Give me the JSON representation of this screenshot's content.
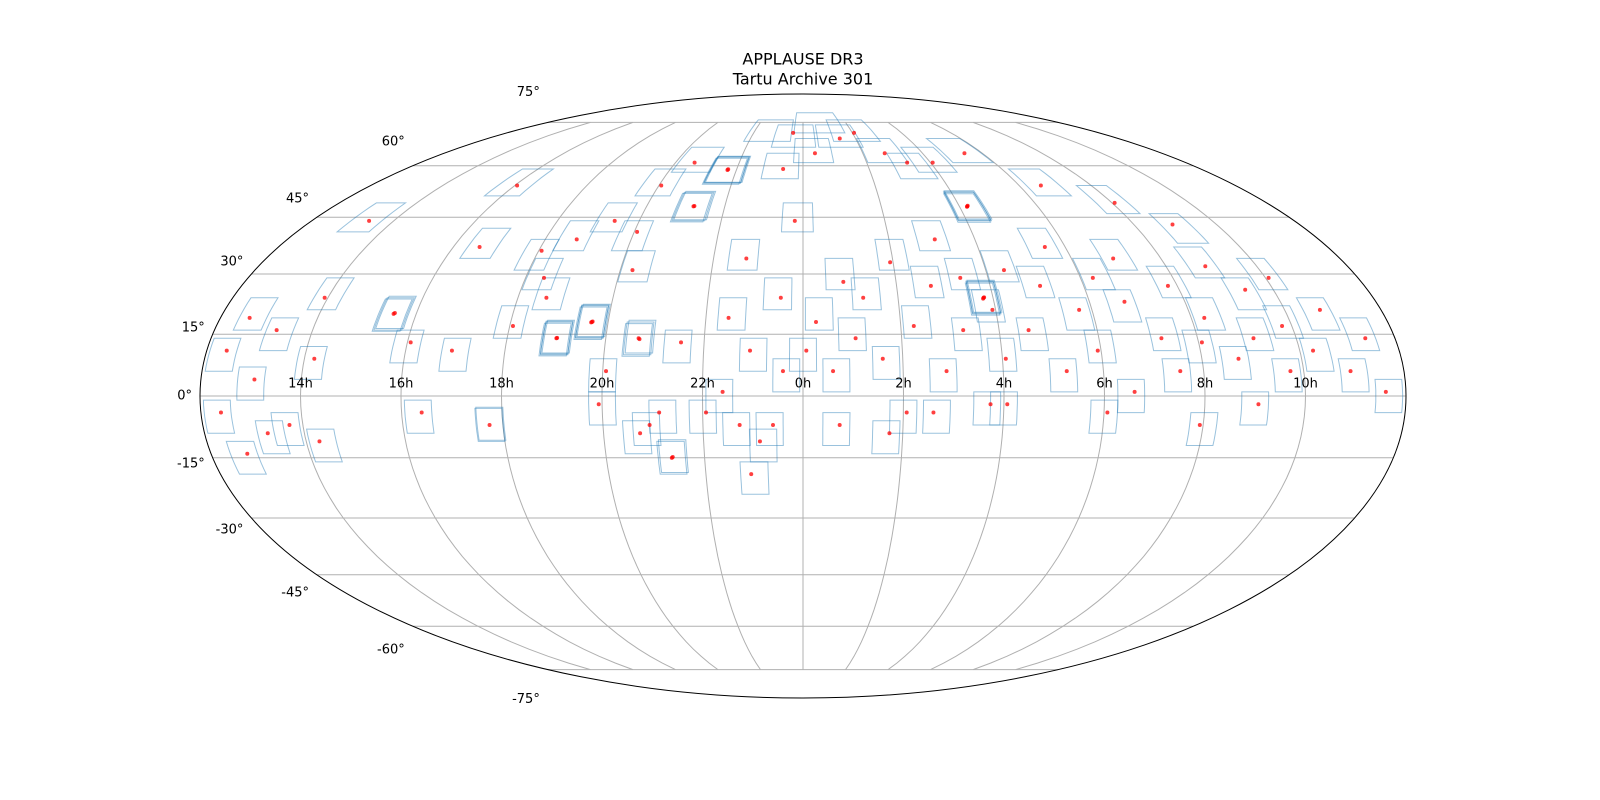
{
  "chart_data": {
    "type": "mollweide",
    "title": "APPLAUSE DR3",
    "subtitle": "Tartu Archive 301",
    "grid": true,
    "plate_color": "#1f77b4",
    "point_color": "#ff0000",
    "xticks": [
      {
        "value": 14,
        "label": "14h"
      },
      {
        "value": 16,
        "label": "16h"
      },
      {
        "value": 18,
        "label": "18h"
      },
      {
        "value": 20,
        "label": "20h"
      },
      {
        "value": 22,
        "label": "22h"
      },
      {
        "value": 0,
        "label": "0h"
      },
      {
        "value": 2,
        "label": "2h"
      },
      {
        "value": 4,
        "label": "4h"
      },
      {
        "value": 6,
        "label": "6h"
      },
      {
        "value": 8,
        "label": "8h"
      },
      {
        "value": 10,
        "label": "10h"
      }
    ],
    "yticks": [
      {
        "value": -75,
        "label": "-75°"
      },
      {
        "value": -60,
        "label": "-60°"
      },
      {
        "value": -45,
        "label": "-45°"
      },
      {
        "value": -30,
        "label": "-30°"
      },
      {
        "value": -15,
        "label": "-15°"
      },
      {
        "value": 0,
        "label": "0°"
      },
      {
        "value": 15,
        "label": "15°"
      },
      {
        "value": 30,
        "label": "30°"
      },
      {
        "value": 45,
        "label": "45°"
      },
      {
        "value": 60,
        "label": "60°"
      },
      {
        "value": 75,
        "label": "75°"
      }
    ],
    "plates": [
      [
        0,
        10
      ],
      [
        5,
        20
      ],
      [
        10,
        5
      ],
      [
        12,
        30
      ],
      [
        15,
        15
      ],
      [
        20,
        25
      ],
      [
        25,
        8
      ],
      [
        30,
        35
      ],
      [
        30,
        -5
      ],
      [
        35,
        18
      ],
      [
        40,
        28
      ],
      [
        42,
        5
      ],
      [
        45,
        40
      ],
      [
        50,
        15
      ],
      [
        52,
        30
      ],
      [
        55,
        -3
      ],
      [
        58,
        22
      ],
      [
        60,
        10
      ],
      [
        63,
        48
      ],
      [
        63.5,
        48.5
      ],
      [
        62.5,
        47.6
      ],
      [
        63,
        48.2
      ],
      [
        57,
        24
      ],
      [
        57.4,
        24.4
      ],
      [
        56.6,
        23.7
      ],
      [
        57,
        24.2
      ],
      [
        65,
        32
      ],
      [
        70,
        15
      ],
      [
        75,
        28
      ],
      [
        78,
        5
      ],
      [
        82,
        38
      ],
      [
        85,
        20
      ],
      [
        90,
        12
      ],
      [
        95,
        30
      ],
      [
        98,
        0
      ],
      [
        100,
        22
      ],
      [
        105,
        35
      ],
      [
        110,
        15
      ],
      [
        112,
        5
      ],
      [
        118,
        28
      ],
      [
        120,
        12
      ],
      [
        125,
        20
      ],
      [
        130,
        8
      ],
      [
        132,
        33
      ],
      [
        138,
        15
      ],
      [
        140,
        25
      ],
      [
        145,
        5
      ],
      [
        148,
        18
      ],
      [
        150,
        30
      ],
      [
        155,
        10
      ],
      [
        160,
        20
      ],
      [
        165,
        5
      ],
      [
        170,
        15
      ],
      [
        175,
        0
      ],
      [
        185,
        10
      ],
      [
        190,
        20
      ],
      [
        195,
        3
      ],
      [
        200,
        15
      ],
      [
        205,
        -8
      ],
      [
        210,
        25
      ],
      [
        212,
        8
      ],
      [
        215,
        -12
      ],
      [
        233,
        20
      ],
      [
        233.4,
        20.4
      ],
      [
        232.6,
        19.7
      ],
      [
        240,
        12
      ],
      [
        245,
        -5
      ],
      [
        255,
        10
      ],
      [
        266,
        -7
      ],
      [
        266.3,
        -6.7
      ],
      [
        270,
        18
      ],
      [
        275,
        30
      ],
      [
        280,
        25
      ],
      [
        285,
        14
      ],
      [
        285.4,
        14.4
      ],
      [
        284.6,
        13.7
      ],
      [
        285,
        14.2
      ],
      [
        295,
        18
      ],
      [
        295.4,
        18.4
      ],
      [
        294.6,
        17.7
      ],
      [
        295,
        18.2
      ],
      [
        300,
        5
      ],
      [
        305,
        32
      ],
      [
        310,
        14
      ],
      [
        310.5,
        14.4
      ],
      [
        309.6,
        13.6
      ],
      [
        313,
        -8
      ],
      [
        318,
        -5
      ],
      [
        322,
        12
      ],
      [
        326,
        58.7
      ],
      [
        326.5,
        59
      ],
      [
        325.5,
        58.4
      ],
      [
        326,
        58.9
      ],
      [
        318,
        48
      ],
      [
        318.5,
        48.3
      ],
      [
        317.5,
        47.7
      ],
      [
        330,
        -5
      ],
      [
        335,
        0
      ],
      [
        338,
        20
      ],
      [
        340,
        35
      ],
      [
        345,
        10
      ],
      [
        350,
        -8
      ],
      [
        352,
        25
      ],
      [
        355,
        5
      ],
      [
        358,
        45
      ],
      [
        290,
        45
      ],
      [
        300,
        55
      ],
      [
        310,
        62
      ],
      [
        280,
        40
      ],
      [
        270,
        35
      ],
      [
        300,
        40
      ],
      [
        20,
        70
      ],
      [
        30,
        72
      ],
      [
        40,
        65
      ],
      [
        50,
        60
      ],
      [
        60,
        62
      ],
      [
        80,
        65
      ],
      [
        100,
        55
      ],
      [
        120,
        50
      ],
      [
        135,
        42
      ],
      [
        240,
        55
      ],
      [
        200,
        45
      ],
      [
        250,
        38
      ],
      [
        350,
        60
      ],
      [
        355,
        70
      ],
      [
        5,
        65
      ],
      [
        10,
        75
      ],
      [
        340,
        72
      ],
      [
        310,
        -10
      ],
      [
        300,
        -3
      ],
      [
        320,
        -15
      ],
      [
        320.5,
        -14.6
      ],
      [
        340,
        -8
      ],
      [
        348,
        -12
      ],
      [
        345,
        -20
      ],
      [
        10,
        -8
      ],
      [
        25,
        -10
      ],
      [
        40,
        -5
      ],
      [
        60,
        -3
      ],
      [
        90,
        -5
      ],
      [
        120,
        -8
      ],
      [
        135,
        -3
      ],
      [
        185,
        -5
      ],
      [
        190,
        -15
      ],
      [
        200,
        -10
      ]
    ],
    "points": [
      [
        1,
        11
      ],
      [
        4,
        18
      ],
      [
        9,
        6
      ],
      [
        13,
        28
      ],
      [
        16,
        14
      ],
      [
        19,
        24
      ],
      [
        24,
        9
      ],
      [
        29,
        33
      ],
      [
        31,
        -4
      ],
      [
        34,
        17
      ],
      [
        41,
        27
      ],
      [
        43,
        6
      ],
      [
        46,
        39
      ],
      [
        49,
        16
      ],
      [
        51,
        29
      ],
      [
        56,
        -2
      ],
      [
        59,
        21
      ],
      [
        61,
        9
      ],
      [
        63,
        48
      ],
      [
        63.3,
        48.2
      ],
      [
        62.8,
        47.9
      ],
      [
        57,
        24
      ],
      [
        57.2,
        24.1
      ],
      [
        56.8,
        23.8
      ],
      [
        66,
        31
      ],
      [
        69,
        16
      ],
      [
        76,
        27
      ],
      [
        79,
        6
      ],
      [
        83,
        37
      ],
      [
        86,
        21
      ],
      [
        89,
        11
      ],
      [
        94,
        29
      ],
      [
        99,
        1
      ],
      [
        101,
        23
      ],
      [
        104,
        34
      ],
      [
        109,
        14
      ],
      [
        113,
        6
      ],
      [
        117,
        27
      ],
      [
        121,
        13
      ],
      [
        124,
        19
      ],
      [
        131,
        9
      ],
      [
        133,
        32
      ],
      [
        137,
        14
      ],
      [
        141,
        26
      ],
      [
        146,
        6
      ],
      [
        147,
        17
      ],
      [
        151,
        29
      ],
      [
        154,
        11
      ],
      [
        161,
        21
      ],
      [
        164,
        6
      ],
      [
        171,
        14
      ],
      [
        174,
        1
      ],
      [
        186,
        11
      ],
      [
        189,
        19
      ],
      [
        196,
        4
      ],
      [
        199,
        16
      ],
      [
        206,
        -7
      ],
      [
        209,
        24
      ],
      [
        213,
        9
      ],
      [
        214,
        -11
      ],
      [
        233,
        20
      ],
      [
        233.3,
        20.2
      ],
      [
        241,
        13
      ],
      [
        246,
        -4
      ],
      [
        254,
        11
      ],
      [
        266,
        -7
      ],
      [
        271,
        17
      ],
      [
        276,
        29
      ],
      [
        279,
        24
      ],
      [
        285,
        14
      ],
      [
        285.2,
        14.1
      ],
      [
        295,
        18
      ],
      [
        295.2,
        18.1
      ],
      [
        294.8,
        17.9
      ],
      [
        301,
        6
      ],
      [
        304,
        31
      ],
      [
        310,
        14
      ],
      [
        310.3,
        13.8
      ],
      [
        314,
        -7
      ],
      [
        317,
        -4
      ],
      [
        323,
        13
      ],
      [
        326,
        58.7
      ],
      [
        326.2,
        58.9
      ],
      [
        318,
        48
      ],
      [
        318.3,
        48.1
      ],
      [
        331,
        -4
      ],
      [
        336,
        1
      ],
      [
        337,
        19
      ],
      [
        341,
        34
      ],
      [
        344,
        11
      ],
      [
        351,
        -7
      ],
      [
        353,
        24
      ],
      [
        354,
        6
      ],
      [
        357,
        44
      ],
      [
        291,
        44
      ],
      [
        301,
        54
      ],
      [
        309,
        61
      ],
      [
        281,
        39
      ],
      [
        271,
        36
      ],
      [
        301,
        41
      ],
      [
        21,
        69
      ],
      [
        31,
        71
      ],
      [
        41,
        64
      ],
      [
        49,
        61
      ],
      [
        61,
        61
      ],
      [
        81,
        64
      ],
      [
        99,
        54
      ],
      [
        121,
        49
      ],
      [
        134,
        43
      ],
      [
        241,
        54
      ],
      [
        201,
        44
      ],
      [
        249,
        37
      ],
      [
        351,
        59
      ],
      [
        354,
        71
      ],
      [
        6,
        64
      ],
      [
        311,
        -9
      ],
      [
        299,
        -2
      ],
      [
        320,
        -15
      ],
      [
        320.3,
        -14.8
      ],
      [
        341,
        -7
      ],
      [
        347,
        -11
      ],
      [
        344,
        -19
      ],
      [
        11,
        -7
      ],
      [
        26,
        -9
      ],
      [
        39,
        -4
      ],
      [
        61,
        -2
      ],
      [
        91,
        -4
      ],
      [
        119,
        -7
      ],
      [
        136,
        -2
      ],
      [
        186,
        -4
      ],
      [
        191,
        -14
      ],
      [
        199,
        -9
      ]
    ]
  }
}
